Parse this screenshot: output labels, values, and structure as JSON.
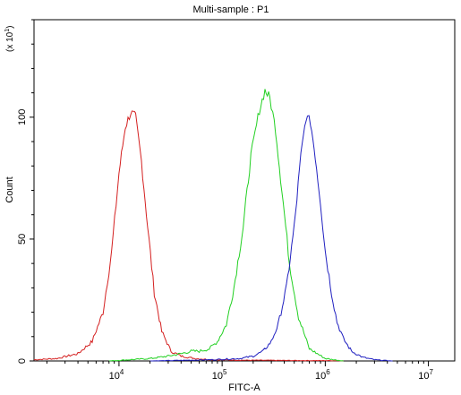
{
  "chart_data": {
    "type": "line",
    "title": "Multi-sample : P1",
    "xlabel": "FITC-A",
    "ylabel": "Count",
    "y_multiplier_label": "(x 10",
    "y_multiplier_exp": "1",
    "x_scale": "log",
    "xlim": [
      1500,
      18000000
    ],
    "ylim": [
      0,
      140
    ],
    "x_ticks": [
      {
        "base": "10",
        "exp": "4",
        "value": 10000
      },
      {
        "base": "10",
        "exp": "5",
        "value": 100000
      },
      {
        "base": "10",
        "exp": "6",
        "value": 1000000
      },
      {
        "base": "10",
        "exp": "7",
        "value": 10000000
      }
    ],
    "y_ticks": [
      {
        "label": "0",
        "value": 0
      },
      {
        "label": "50",
        "value": 50
      },
      {
        "label": "100",
        "value": 100
      }
    ],
    "grid": false,
    "legend": "none",
    "series": [
      {
        "color": "#d42020",
        "x": [
          1500,
          2500,
          4000,
          5500,
          7000,
          8500,
          10000,
          11500,
          13000,
          14500,
          16500,
          19000,
          22000,
          26000,
          32000,
          40000,
          55000,
          80000,
          150000,
          400000,
          1500000
        ],
        "y": [
          0.5,
          1,
          3,
          8,
          20,
          45,
          77,
          96,
          102,
          100,
          82,
          55,
          28,
          12,
          4,
          2,
          1,
          0.5,
          0.3,
          0.2,
          0.1
        ]
      },
      {
        "color": "#22d022",
        "x": [
          8000,
          20000,
          30000,
          40000,
          50000,
          60000,
          75000,
          90000,
          110000,
          130000,
          160000,
          190000,
          230000,
          260000,
          290000,
          330000,
          380000,
          450000,
          550000,
          700000,
          1000000,
          1500000
        ],
        "y": [
          0,
          1,
          2,
          3,
          4,
          4,
          5,
          8,
          15,
          30,
          55,
          84,
          103,
          111,
          108,
          95,
          70,
          40,
          18,
          5,
          1,
          0
        ]
      },
      {
        "color": "#2020c0",
        "x": [
          20000,
          80000,
          150000,
          200000,
          250000,
          300000,
          350000,
          420000,
          500000,
          580000,
          650000,
          720000,
          800000,
          900000,
          1000000,
          1150000,
          1300000,
          1500000,
          1800000,
          2300000,
          3000000,
          4500000
        ],
        "y": [
          0,
          0.5,
          1,
          2,
          4,
          8,
          15,
          30,
          55,
          84,
          100,
          98,
          84,
          65,
          45,
          28,
          16,
          9,
          4,
          1.5,
          0.5,
          0
        ]
      }
    ]
  }
}
